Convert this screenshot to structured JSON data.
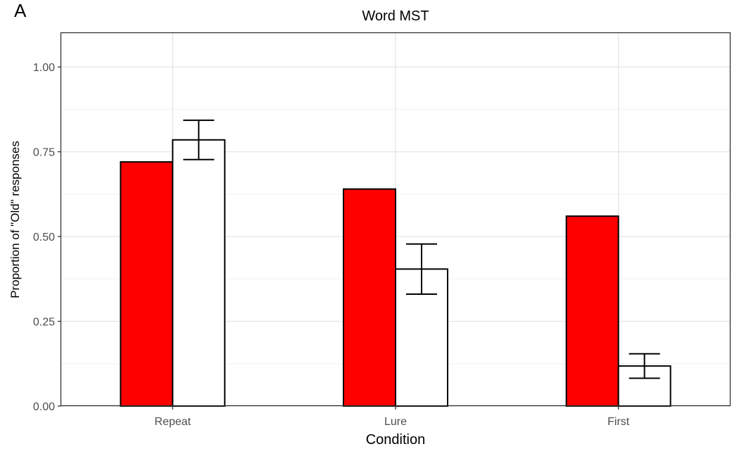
{
  "panel_label": "A",
  "chart_data": {
    "type": "bar",
    "title": "Word MST",
    "xlabel": "Condition",
    "ylabel": "Proportion of \"Old\" responses",
    "categories": [
      "Repeat",
      "Lure",
      "First"
    ],
    "ylim": [
      0,
      1.1
    ],
    "yticks": [
      0.0,
      0.25,
      0.5,
      0.75,
      1.0
    ],
    "ytick_labels": [
      "0.00",
      "0.25",
      "0.50",
      "0.75",
      "1.00"
    ],
    "grid": true,
    "series": [
      {
        "color": "#ff0000",
        "values": [
          0.72,
          0.64,
          0.56
        ]
      },
      {
        "color": "#ffffff",
        "values": [
          0.785,
          0.404,
          0.118
        ],
        "error_low": [
          0.727,
          0.33,
          0.082
        ],
        "error_high": [
          0.843,
          0.478,
          0.154
        ]
      }
    ]
  }
}
